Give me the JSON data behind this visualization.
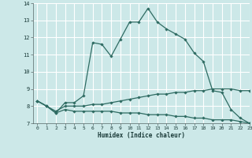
{
  "xlabel": "Humidex (Indice chaleur)",
  "bg_color": "#cce8e8",
  "grid_color": "#ffffff",
  "line_color": "#2e6b62",
  "xlim": [
    -0.5,
    23
  ],
  "ylim": [
    7,
    14
  ],
  "yticks": [
    7,
    8,
    9,
    10,
    11,
    12,
    13,
    14
  ],
  "xticks": [
    0,
    1,
    2,
    3,
    4,
    5,
    6,
    7,
    8,
    9,
    10,
    11,
    12,
    13,
    14,
    15,
    16,
    17,
    18,
    19,
    20,
    21,
    22,
    23
  ],
  "xtick_labels": [
    "0",
    "1",
    "2",
    "3",
    "4",
    "5",
    "6",
    "7",
    "8",
    "9",
    "10",
    "11",
    "12",
    "13",
    "14",
    "15",
    "16",
    "17",
    "18",
    "19",
    "20",
    "21",
    "22",
    "23"
  ],
  "series1_x": [
    0,
    1,
    2,
    3,
    4,
    5,
    6,
    7,
    8,
    9,
    10,
    11,
    12,
    13,
    14,
    15,
    16,
    17,
    18,
    19,
    20,
    21,
    22,
    23
  ],
  "series1_y": [
    8.3,
    8.0,
    7.6,
    8.2,
    8.2,
    8.6,
    11.7,
    11.6,
    10.9,
    11.9,
    12.9,
    12.9,
    13.7,
    12.9,
    12.5,
    12.2,
    11.9,
    11.1,
    10.6,
    8.9,
    8.8,
    7.8,
    7.3,
    7.0
  ],
  "series2_x": [
    0,
    1,
    2,
    3,
    4,
    5,
    6,
    7,
    8,
    9,
    10,
    11,
    12,
    13,
    14,
    15,
    16,
    17,
    18,
    19,
    20,
    21,
    22,
    23
  ],
  "series2_y": [
    8.3,
    8.0,
    7.7,
    8.0,
    8.0,
    8.0,
    8.1,
    8.1,
    8.2,
    8.3,
    8.4,
    8.5,
    8.6,
    8.7,
    8.7,
    8.8,
    8.8,
    8.9,
    8.9,
    9.0,
    9.0,
    9.0,
    8.9,
    8.9
  ],
  "series3_x": [
    0,
    1,
    2,
    3,
    4,
    5,
    6,
    7,
    8,
    9,
    10,
    11,
    12,
    13,
    14,
    15,
    16,
    17,
    18,
    19,
    20,
    21,
    22,
    23
  ],
  "series3_y": [
    8.3,
    8.0,
    7.6,
    7.8,
    7.7,
    7.7,
    7.7,
    7.7,
    7.7,
    7.6,
    7.6,
    7.6,
    7.5,
    7.5,
    7.5,
    7.4,
    7.4,
    7.3,
    7.3,
    7.2,
    7.2,
    7.2,
    7.1,
    7.0
  ]
}
